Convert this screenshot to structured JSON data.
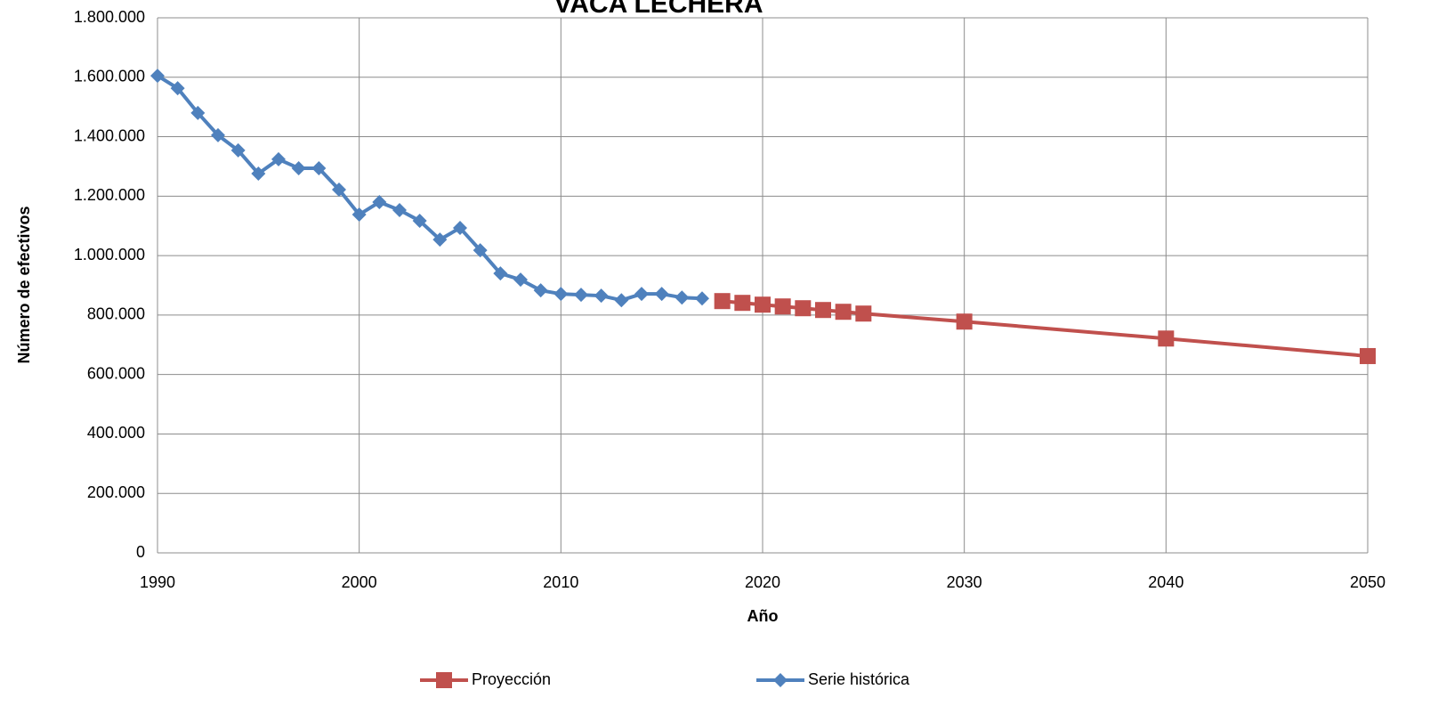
{
  "chart_data": {
    "type": "line",
    "title": "VACA LECHERA",
    "x_label": "Año",
    "y_label": "Número de efectivos",
    "xlim": [
      1990,
      2050
    ],
    "xticks": [
      1990,
      2000,
      2010,
      2020,
      2030,
      2040,
      2050
    ],
    "ylim": [
      0,
      1800000
    ],
    "yticks": [
      0,
      {
        "value": 200000,
        "label": "200.000"
      },
      {
        "value": 400000,
        "label": "400.000"
      },
      {
        "value": 600000,
        "label": "600.000"
      },
      {
        "value": 800000,
        "label": "800.000"
      },
      {
        "value": 1000000,
        "label": "1.000.000"
      },
      {
        "value": 1200000,
        "label": "1.200.000"
      },
      {
        "value": 1400000,
        "label": "1.400.000"
      },
      {
        "value": 1600000,
        "label": "1.600.000"
      },
      {
        "value": 1800000,
        "label": "1.800.000"
      }
    ],
    "grid": true,
    "legend": "bottom",
    "series": [
      {
        "name": "Proyección",
        "color": "#c0504d",
        "marker": "square",
        "x": [
          2018,
          2019,
          2020,
          2021,
          2022,
          2023,
          2024,
          2025,
          2030,
          2040,
          2050
        ],
        "values": [
          847000,
          841000,
          835000,
          829000,
          823000,
          817000,
          811000,
          805000,
          778000,
          721000,
          662000
        ]
      },
      {
        "name": "Serie histórica",
        "color": "#4f81bd",
        "marker": "diamond",
        "x": [
          1990,
          1991,
          1992,
          1993,
          1994,
          1995,
          1996,
          1997,
          1998,
          1999,
          2000,
          2001,
          2002,
          2003,
          2004,
          2005,
          2006,
          2007,
          2008,
          2009,
          2010,
          2011,
          2012,
          2013,
          2014,
          2015,
          2016,
          2017
        ],
        "values": [
          1605000,
          1563000,
          1480000,
          1405000,
          1354000,
          1276000,
          1324000,
          1294000,
          1294000,
          1222000,
          1138000,
          1180000,
          1153000,
          1117000,
          1054000,
          1093000,
          1018000,
          940000,
          919000,
          883000,
          871000,
          868000,
          865000,
          850000,
          871000,
          871000,
          859000,
          856000
        ]
      }
    ]
  }
}
